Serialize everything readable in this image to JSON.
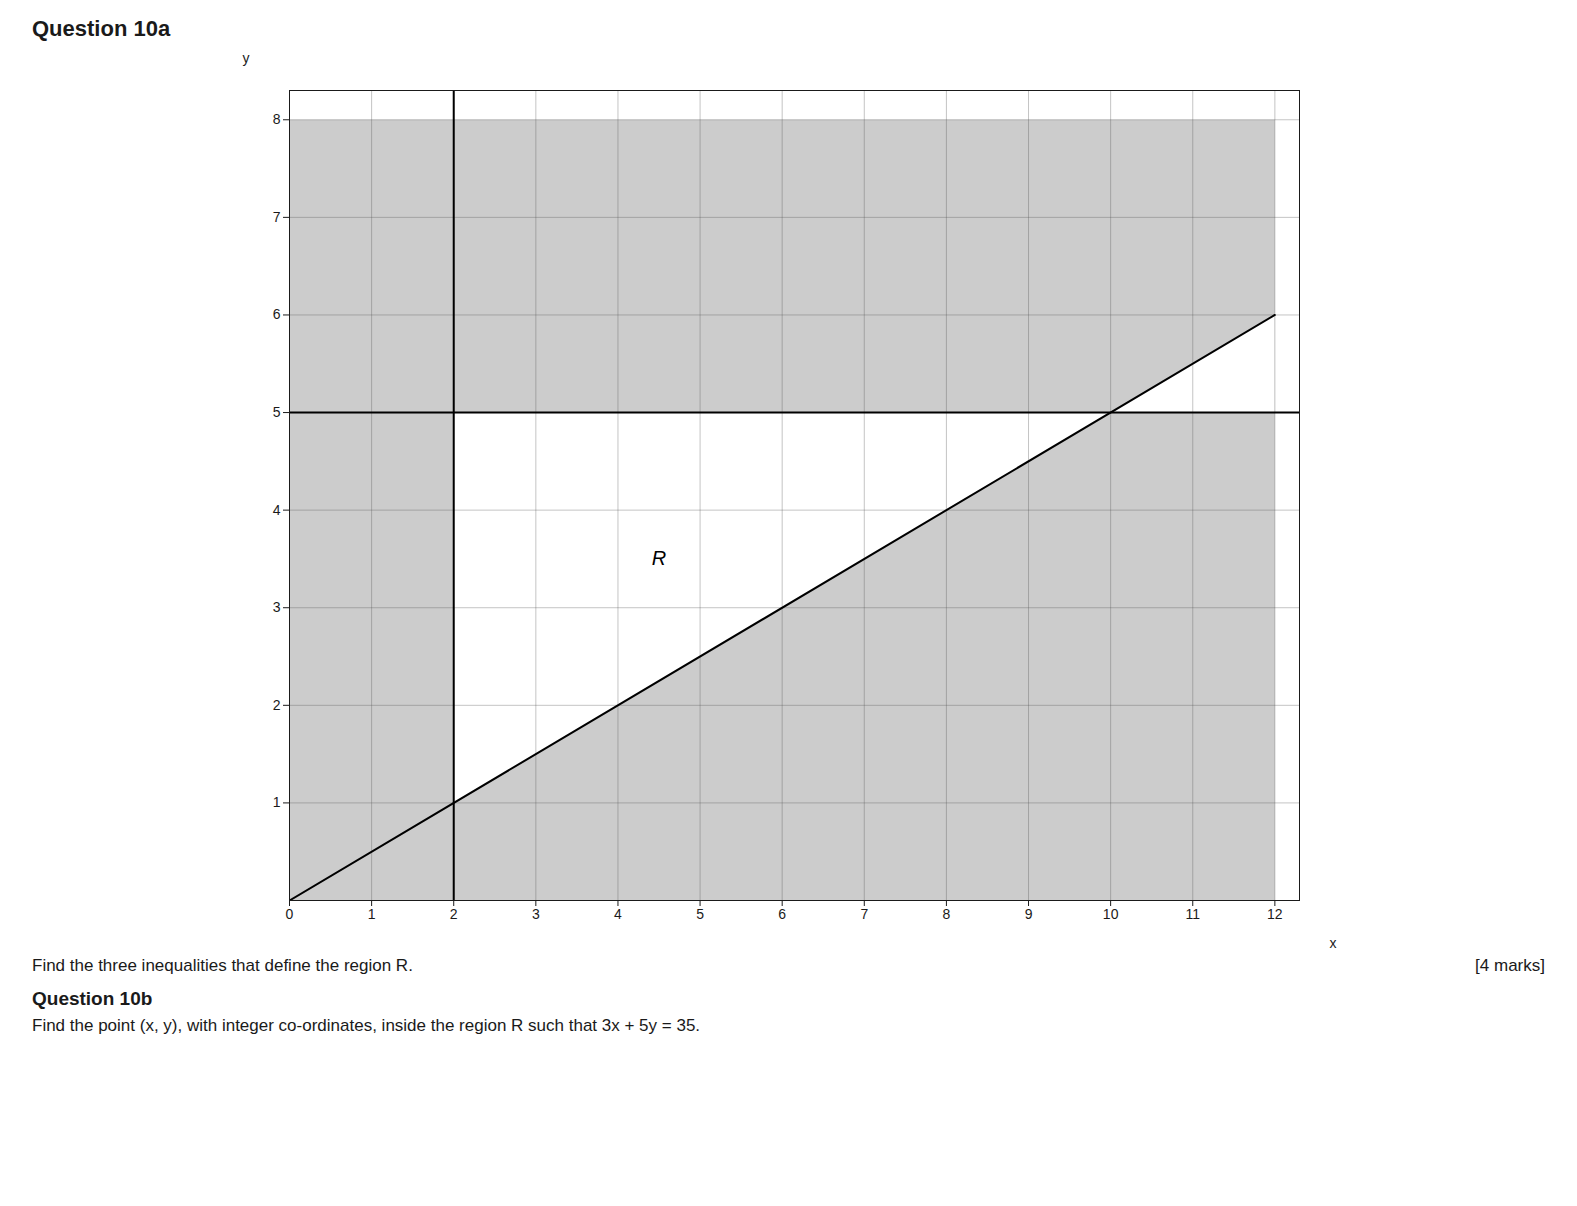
{
  "chart_data": {
    "type": "region",
    "title": "Question 10a",
    "xlabel": "x",
    "ylabel": "y",
    "xlim": [
      0,
      12.3
    ],
    "ylim": [
      0,
      8.3
    ],
    "xticks": [
      0,
      1,
      2,
      3,
      4,
      5,
      6,
      7,
      8,
      9,
      10,
      11,
      12
    ],
    "yticks": [
      1,
      2,
      3,
      4,
      5,
      6,
      7,
      8
    ],
    "grid": true,
    "areas": [
      {
        "x": [
          0,
          12,
          12,
          0
        ],
        "y": [
          0,
          0,
          8,
          8
        ],
        "color": "#cccccc"
      },
      {
        "x": [
          2,
          2,
          12,
          12
        ],
        "y": [
          1,
          5,
          5,
          6
        ],
        "color": "#ffffff"
      }
    ],
    "lines": [
      {
        "x": [
          2,
          2
        ],
        "y": [
          0,
          8.3
        ],
        "color": "#000000"
      },
      {
        "x": [
          0,
          12.3
        ],
        "y": [
          5,
          5
        ],
        "color": "#000000"
      },
      {
        "x": [
          0,
          12
        ],
        "y": [
          0,
          6
        ],
        "color": "#000000"
      }
    ],
    "annotations": [
      {
        "text": "R",
        "x": 4.5,
        "y": 3.5
      }
    ],
    "caption": [
      "Find the three inequalities that define the region R.",
      "[4 marks]",
      "Question 10b",
      "Find the point (x, y), with integer co-ordinates, inside the region R such that 3x + 5y = 35."
    ]
  }
}
